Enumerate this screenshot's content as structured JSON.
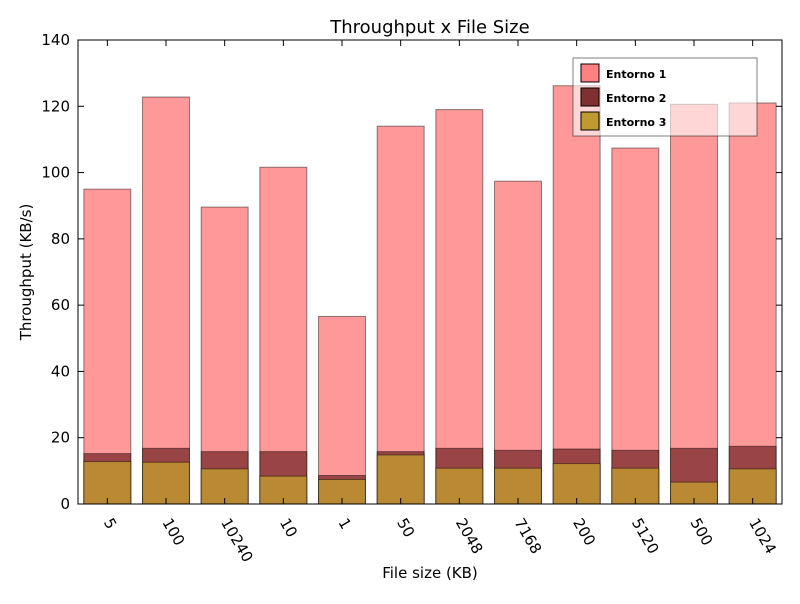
{
  "chart_data": {
    "type": "bar",
    "title": "Throughput x File Size",
    "xlabel": "File size (KB)",
    "ylabel": "Throughput (KB/s)",
    "ylim": [
      0,
      140
    ],
    "yticks": [
      0,
      20,
      40,
      60,
      80,
      100,
      120,
      140
    ],
    "categories": [
      "5",
      "100",
      "10240",
      "10",
      "1",
      "50",
      "2048",
      "7168",
      "200",
      "5120",
      "500",
      "1024"
    ],
    "series": [
      {
        "name": "Entorno 1",
        "color": "#ff8080",
        "values": [
          95,
          122.8,
          89.6,
          101.6,
          56.6,
          114,
          119,
          97.4,
          126.2,
          107.4,
          120.6,
          121
        ]
      },
      {
        "name": "Entorno 2",
        "color": "#7f3030",
        "values": [
          15.2,
          16.8,
          15.8,
          15.8,
          8.6,
          15.8,
          16.8,
          16.2,
          16.6,
          16.2,
          16.8,
          17.4
        ]
      },
      {
        "name": "Entorno 3",
        "color": "#c09a30",
        "values": [
          12.8,
          12.6,
          10.6,
          8.4,
          7.4,
          14.8,
          10.8,
          10.8,
          12.2,
          10.8,
          6.6,
          10.6
        ]
      }
    ],
    "legend_position": "top-right",
    "grid": false
  }
}
